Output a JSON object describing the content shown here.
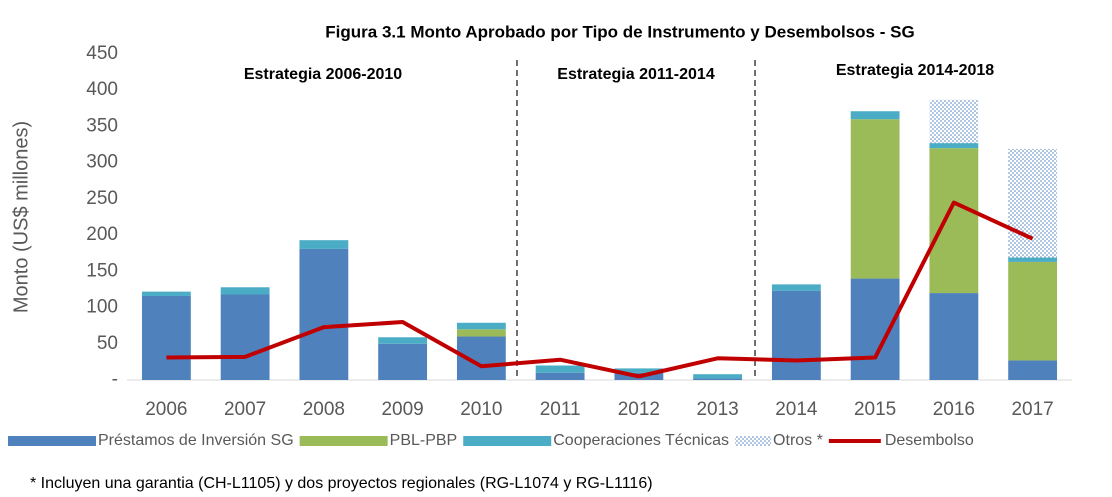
{
  "chart_data": {
    "type": "bar",
    "stacked": true,
    "title": "Figura 3.1 Monto Aprobado por Tipo de Instrumento y Desembolsos - SG",
    "y_label": "Monto (US$ millones)",
    "categories": [
      "2006",
      "2007",
      "2008",
      "2009",
      "2010",
      "2011",
      "2012",
      "2013",
      "2014",
      "2015",
      "2016",
      "2017"
    ],
    "series": [
      {
        "name": "Préstamos de Inversión SG",
        "color": "#4f81bd",
        "values": [
          116,
          118,
          181,
          50,
          60,
          10,
          10,
          2,
          123,
          140,
          120,
          27
        ]
      },
      {
        "name": "PBL-PBP",
        "color": "#9bbb59",
        "values": [
          0,
          0,
          0,
          0,
          10,
          0,
          0,
          0,
          0,
          220,
          200,
          136
        ]
      },
      {
        "name": "Cooperaciones Técnicas",
        "color": "#4bacc6",
        "values": [
          6,
          10,
          12,
          9,
          9,
          10,
          6,
          6,
          9,
          11,
          7,
          6
        ]
      },
      {
        "name": "Otros *",
        "color": "#4f81bd",
        "pattern": "dots",
        "values": [
          0,
          0,
          0,
          0,
          0,
          0,
          0,
          0,
          0,
          0,
          60,
          150
        ]
      },
      {
        "name": "Desembolso",
        "type": "line",
        "color": "#c00000",
        "values": [
          31,
          32,
          73,
          80,
          19,
          28,
          5,
          30,
          27,
          31,
          245,
          195
        ]
      }
    ],
    "ylim": [
      0,
      450
    ],
    "yticks": [
      {
        "value": 0,
        "label": "-"
      },
      50,
      100,
      150,
      200,
      250,
      300,
      350,
      400,
      450
    ],
    "annotations": [
      "Estrategia 2006-2010",
      "Estrategia 2011-2014",
      "Estrategia 2014-2018"
    ],
    "footnote": "* Incluyen una garantia (CH-L1105) y dos proyectos regionales (RG-L1074 y RG-L1116)",
    "legend": "bottom"
  }
}
